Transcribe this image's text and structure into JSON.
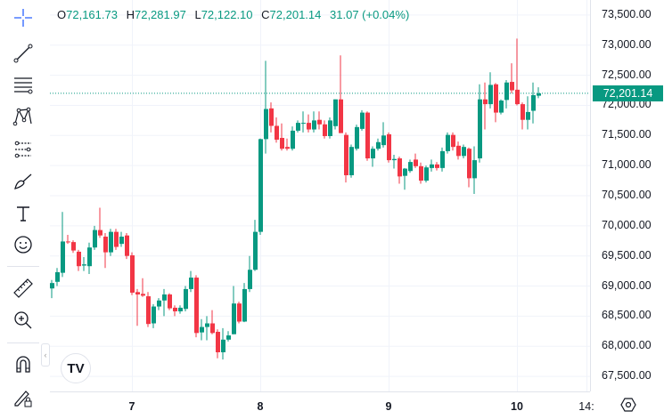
{
  "legend": {
    "open_label": "O",
    "open": "72,161.73",
    "high_label": "H",
    "high": "72,281.97",
    "low_label": "L",
    "low": "72,122.10",
    "close_label": "C",
    "close": "72,201.14",
    "change": "31.07 (+0.04%)"
  },
  "last_price_label": "72,201.14",
  "colors": {
    "up": "#089981",
    "down": "#f23645",
    "grid": "#f0f3fa",
    "last_price": "#089981"
  },
  "toolbar": {
    "icons": [
      "crosshair-icon",
      "trend-line-icon",
      "fib-retracement-icon",
      "pattern-icon",
      "prediction-icon",
      "brush-icon",
      "text-icon",
      "emoji-icon",
      "ruler-icon",
      "zoom-in-icon",
      "magnet-icon",
      "lock-drawings-icon"
    ]
  },
  "logo_text": "TV",
  "chart_data": {
    "type": "candlestick",
    "ylim": [
      67250,
      73750
    ],
    "y_ticks": [
      "73,500.00",
      "73,000.00",
      "72,500.00",
      "72,000.00",
      "71,500.00",
      "71,000.00",
      "70,500.00",
      "70,000.00",
      "69,500.00",
      "69,000.00",
      "68,500.00",
      "68,000.00",
      "67,500.00"
    ],
    "y_tick_values": [
      73500,
      73000,
      72500,
      72000,
      71500,
      71000,
      70500,
      70000,
      69500,
      69000,
      68500,
      68000,
      67500
    ],
    "x_ticks": [
      {
        "label": "7",
        "index": 15
      },
      {
        "label": "8",
        "index": 39
      },
      {
        "label": "9",
        "index": 63
      },
      {
        "label": "10",
        "index": 87
      },
      {
        "label": "14:",
        "index": 100
      }
    ],
    "last_price": 72201.14,
    "grid": true,
    "ohlc": [
      [
        68960,
        69100,
        68800,
        69050
      ],
      [
        69070,
        69300,
        69000,
        69230
      ],
      [
        69220,
        70230,
        69150,
        69740
      ],
      [
        69740,
        69850,
        69700,
        69730
      ],
      [
        69730,
        69760,
        69550,
        69590
      ],
      [
        69570,
        69600,
        69250,
        69330
      ],
      [
        69340,
        69480,
        69250,
        69360
      ],
      [
        69330,
        69720,
        69200,
        69640
      ],
      [
        69640,
        70000,
        69600,
        69930
      ],
      [
        69930,
        70300,
        69800,
        69840
      ],
      [
        69820,
        69880,
        69300,
        69560
      ],
      [
        69560,
        69950,
        69500,
        69900
      ],
      [
        69900,
        69950,
        69600,
        69650
      ],
      [
        69700,
        69900,
        69650,
        69820
      ],
      [
        69840,
        69880,
        69450,
        69500
      ],
      [
        69510,
        69560,
        68850,
        68890
      ],
      [
        68900,
        68950,
        68340,
        68860
      ],
      [
        68870,
        69130,
        68820,
        68840
      ],
      [
        68830,
        68900,
        68320,
        68370
      ],
      [
        68380,
        68700,
        68300,
        68660
      ],
      [
        68660,
        68800,
        68600,
        68760
      ],
      [
        68760,
        68950,
        68500,
        68860
      ],
      [
        68860,
        68880,
        68600,
        68630
      ],
      [
        68640,
        68680,
        68500,
        68580
      ],
      [
        68580,
        68680,
        68540,
        68640
      ],
      [
        68620,
        69000,
        68580,
        68950
      ],
      [
        68950,
        69250,
        68900,
        69140
      ],
      [
        69140,
        69180,
        68150,
        68220
      ],
      [
        68230,
        68450,
        68100,
        68320
      ],
      [
        68320,
        68500,
        68100,
        68380
      ],
      [
        68380,
        68600,
        68200,
        68220
      ],
      [
        68240,
        68280,
        67800,
        67900
      ],
      [
        67900,
        68300,
        67780,
        68110
      ],
      [
        68110,
        68250,
        68080,
        68180
      ],
      [
        68200,
        69000,
        68200,
        68710
      ],
      [
        68710,
        68740,
        68380,
        68410
      ],
      [
        68410,
        69050,
        68400,
        68950
      ],
      [
        68950,
        69500,
        68900,
        69270
      ],
      [
        69270,
        70100,
        69250,
        69900
      ],
      [
        69900,
        71450,
        69850,
        71440
      ],
      [
        71440,
        72740,
        71200,
        71940
      ],
      [
        71950,
        72050,
        71550,
        71660
      ],
      [
        71660,
        71800,
        71380,
        71430
      ],
      [
        71460,
        71700,
        71250,
        71280
      ],
      [
        71310,
        71450,
        71250,
        71280
      ],
      [
        71280,
        71650,
        71250,
        71580
      ],
      [
        71580,
        71750,
        71550,
        71710
      ],
      [
        71700,
        71900,
        71550,
        71710
      ],
      [
        71710,
        71850,
        71550,
        71600
      ],
      [
        71600,
        71900,
        71550,
        71750
      ],
      [
        71760,
        71900,
        71600,
        71685
      ],
      [
        71685,
        71750,
        71450,
        71490
      ],
      [
        71490,
        71800,
        71450,
        71750
      ],
      [
        71655,
        72100,
        71600,
        72100
      ],
      [
        72100,
        72830,
        71540,
        71540
      ],
      [
        71510,
        71550,
        70720,
        70840
      ],
      [
        70840,
        71350,
        70800,
        71310
      ],
      [
        71280,
        71680,
        71250,
        71640
      ],
      [
        71610,
        71920,
        71580,
        71880
      ],
      [
        71880,
        71900,
        71080,
        71120
      ],
      [
        71120,
        71320,
        70980,
        71280
      ],
      [
        71280,
        71450,
        71250,
        71390
      ],
      [
        71340,
        71720,
        71300,
        71500
      ],
      [
        71520,
        71550,
        71050,
        71090
      ],
      [
        71090,
        71180,
        70950,
        71110
      ],
      [
        71120,
        71150,
        70700,
        70820
      ],
      [
        70830,
        70960,
        70600,
        70950
      ],
      [
        70910,
        71100,
        70880,
        71060
      ],
      [
        71100,
        71200,
        70960,
        70990
      ],
      [
        70990,
        71050,
        70700,
        70750
      ],
      [
        70750,
        71000,
        70720,
        70970
      ],
      [
        70960,
        71100,
        70900,
        71020
      ],
      [
        71020,
        71060,
        70920,
        70960
      ],
      [
        70960,
        71300,
        70900,
        71240
      ],
      [
        71240,
        71550,
        71200,
        71510
      ],
      [
        71510,
        71550,
        71250,
        71310
      ],
      [
        71330,
        71400,
        71100,
        71160
      ],
      [
        71160,
        71350,
        71120,
        71310
      ],
      [
        71280,
        71300,
        70640,
        70790
      ],
      [
        70790,
        71320,
        70530,
        71090
      ],
      [
        71120,
        72350,
        71050,
        72100
      ],
      [
        72100,
        72380,
        71600,
        72020
      ],
      [
        72020,
        72550,
        71950,
        72340
      ],
      [
        72350,
        72370,
        71720,
        71880
      ],
      [
        71880,
        72100,
        71850,
        72080
      ],
      [
        72090,
        72420,
        71950,
        72380
      ],
      [
        72390,
        72700,
        72200,
        72250
      ],
      [
        72260,
        73110,
        72000,
        72020
      ],
      [
        72020,
        72050,
        71600,
        71760
      ],
      [
        71760,
        72150,
        71600,
        71890
      ],
      [
        71910,
        72380,
        71700,
        72170
      ],
      [
        72160,
        72300,
        72120,
        72200
      ]
    ]
  }
}
